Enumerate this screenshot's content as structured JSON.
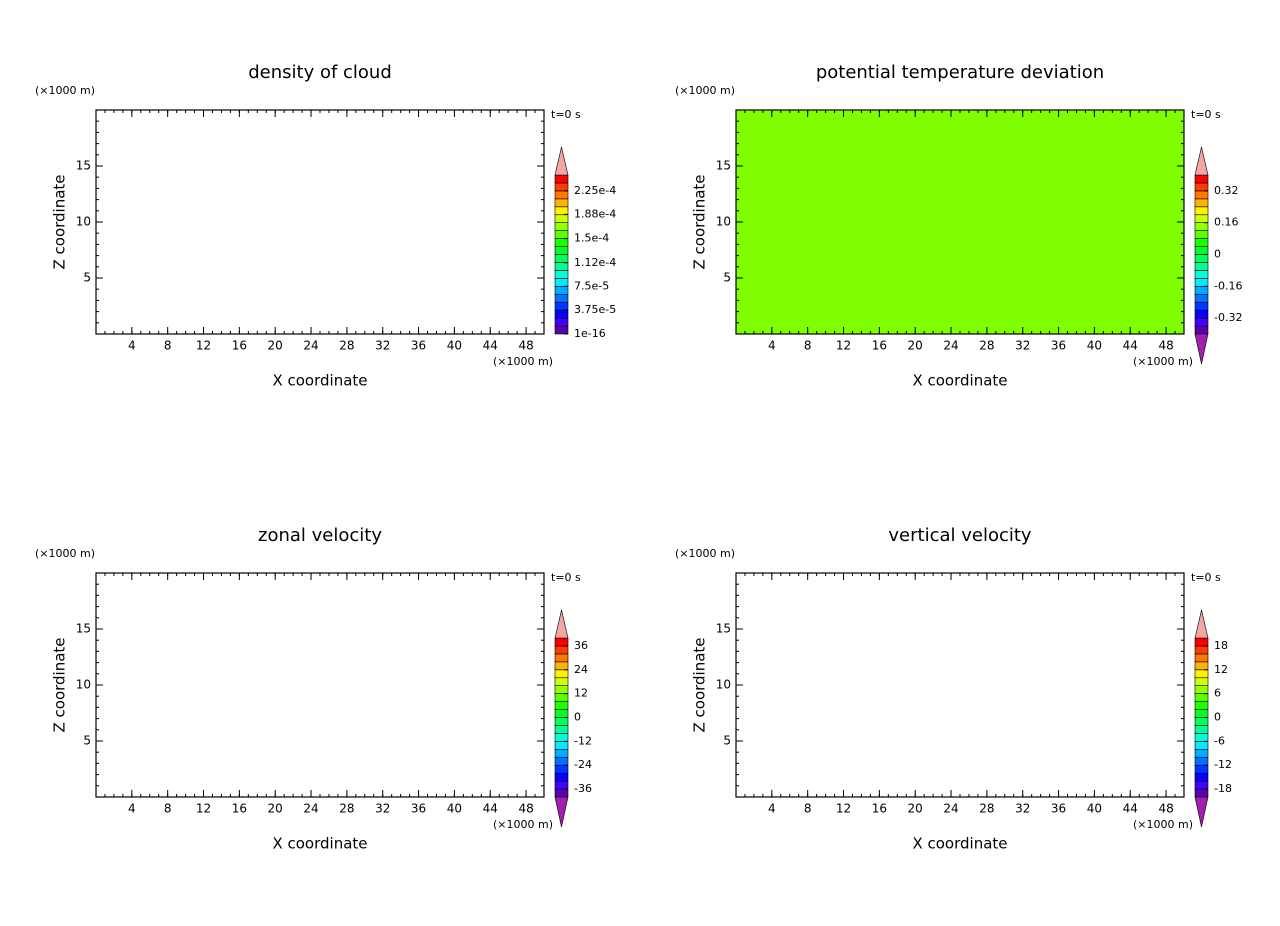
{
  "chart_data": [
    {
      "type": "contour",
      "title": "density of cloud",
      "xlabel": "X coordinate",
      "ylabel": "Z coordinate",
      "x_unit": "(×1000 m)",
      "y_unit": "(×1000 m)",
      "time_label": "t=0 s",
      "xlim": [
        0,
        50
      ],
      "ylim": [
        0,
        20
      ],
      "xticks": [
        4,
        8,
        12,
        16,
        20,
        24,
        28,
        32,
        36,
        40,
        44,
        48
      ],
      "yticks": [
        5,
        10,
        15
      ],
      "colorbar": {
        "lim": [
          0,
          0.00025
        ],
        "extend": "max",
        "ticks": [
          {
            "value": 1e-16,
            "label": "1e-16"
          },
          {
            "value": 3.75e-05,
            "label": "3.75e-5"
          },
          {
            "value": 7.5e-05,
            "label": "7.5e-5"
          },
          {
            "value": 0.000112,
            "label": "1.12e-4"
          },
          {
            "value": 0.00015,
            "label": "1.5e-4"
          },
          {
            "value": 0.000188,
            "label": "1.88e-4"
          },
          {
            "value": 0.000225,
            "label": "2.25e-4"
          }
        ]
      }
    },
    {
      "type": "contour",
      "title": "potential temperature deviation",
      "xlabel": "X coordinate",
      "ylabel": "Z coordinate",
      "x_unit": "(×1000 m)",
      "y_unit": "(×1000 m)",
      "time_label": "t=0 s",
      "xlim": [
        0,
        50
      ],
      "ylim": [
        0,
        20
      ],
      "xticks": [
        4,
        8,
        12,
        16,
        20,
        24,
        28,
        32,
        36,
        40,
        44,
        48
      ],
      "yticks": [
        5,
        10,
        15
      ],
      "fill_color": "#80ff00",
      "colorbar": {
        "lim": [
          -0.4,
          0.4
        ],
        "extend": "both",
        "ticks": [
          -0.32,
          -0.16,
          0,
          0.16,
          0.32
        ]
      }
    },
    {
      "type": "contour",
      "title": "zonal velocity",
      "xlabel": "X coordinate",
      "ylabel": "Z coordinate",
      "x_unit": "(×1000 m)",
      "y_unit": "(×1000 m)",
      "time_label": "t=0 s",
      "xlim": [
        0,
        50
      ],
      "ylim": [
        0,
        20
      ],
      "xticks": [
        4,
        8,
        12,
        16,
        20,
        24,
        28,
        32,
        36,
        40,
        44,
        48
      ],
      "yticks": [
        5,
        10,
        15
      ],
      "colorbar": {
        "lim": [
          -40,
          40
        ],
        "extend": "both",
        "ticks": [
          -36,
          -24,
          -12,
          0,
          12,
          24,
          36
        ]
      }
    },
    {
      "type": "contour",
      "title": "vertical velocity",
      "xlabel": "X coordinate",
      "ylabel": "Z coordinate",
      "x_unit": "(×1000 m)",
      "y_unit": "(×1000 m)",
      "time_label": "t=0 s",
      "xlim": [
        0,
        50
      ],
      "ylim": [
        0,
        20
      ],
      "xticks": [
        4,
        8,
        12,
        16,
        20,
        24,
        28,
        32,
        36,
        40,
        44,
        48
      ],
      "yticks": [
        5,
        10,
        15
      ],
      "colorbar": {
        "lim": [
          -20,
          20
        ],
        "extend": "both",
        "ticks": [
          -18,
          -12,
          -6,
          0,
          6,
          12,
          18
        ]
      }
    }
  ]
}
